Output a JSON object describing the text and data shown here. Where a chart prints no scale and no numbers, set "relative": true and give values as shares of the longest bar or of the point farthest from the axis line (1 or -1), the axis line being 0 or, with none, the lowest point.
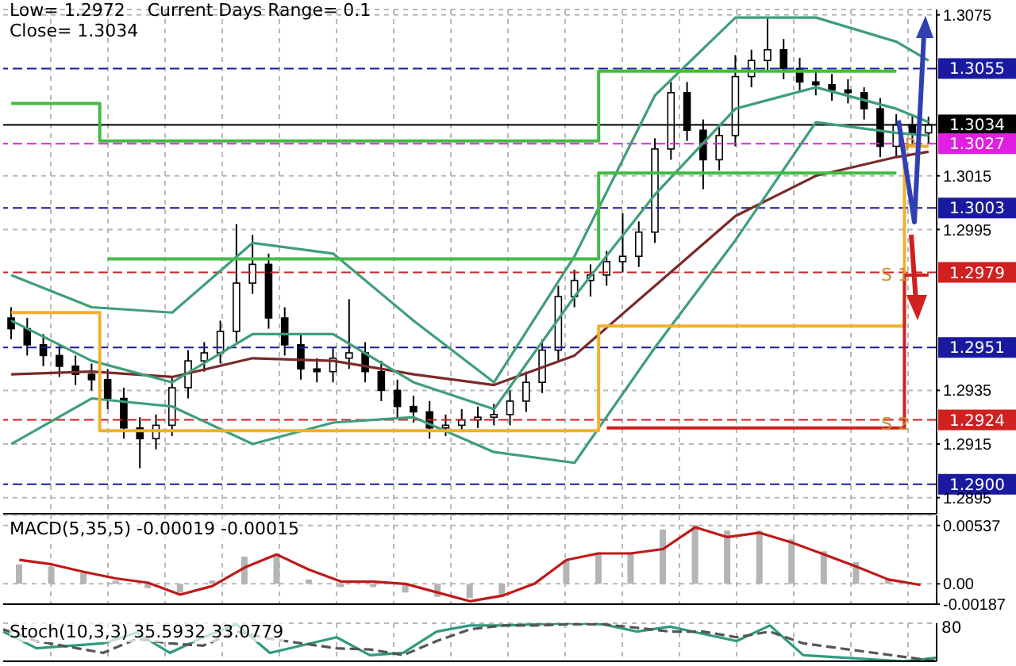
{
  "chart_data": [
    {
      "type": "candlestick",
      "tick_labels": "y",
      "grid": true,
      "annotations": [
        "Low= 1.2972    Current Days Range= 0.1",
        "Close= 1.3034",
        "P",
        "S 1",
        "S 2"
      ],
      "categories": [
        null,
        null,
        null,
        null,
        null,
        null,
        null,
        null,
        null,
        null,
        null,
        null,
        null,
        null,
        null,
        null,
        null,
        null,
        null,
        null,
        null,
        null,
        null,
        null,
        null,
        null,
        null,
        null,
        null,
        null,
        null,
        null,
        null,
        null,
        null,
        null,
        null,
        null,
        null,
        null,
        null,
        null,
        null,
        null,
        null,
        null,
        null,
        null,
        null,
        null,
        null,
        null,
        null,
        null,
        null,
        null,
        null,
        null
      ],
      "ohlc": [
        [
          1.2962,
          1.2966,
          1.2954,
          1.2958
        ],
        [
          1.2958,
          1.2962,
          1.2948,
          1.2952
        ],
        [
          1.2952,
          1.2956,
          1.2944,
          1.2948
        ],
        [
          1.2948,
          1.2952,
          1.294,
          1.2944
        ],
        [
          1.2944,
          1.2948,
          1.2937,
          1.2941
        ],
        [
          1.2941,
          1.2945,
          1.2935,
          1.2939
        ],
        [
          1.2939,
          1.2943,
          1.2928,
          1.2932
        ],
        [
          1.2932,
          1.2936,
          1.2917,
          1.2921
        ],
        [
          1.2921,
          1.2925,
          1.2906,
          1.2917
        ],
        [
          1.2917,
          1.2926,
          1.2913,
          1.2922
        ],
        [
          1.2922,
          1.294,
          1.2918,
          1.2936
        ],
        [
          1.2936,
          1.295,
          1.2932,
          1.2946
        ],
        [
          1.2946,
          1.2953,
          1.2942,
          1.2949
        ],
        [
          1.2949,
          1.2961,
          1.2945,
          1.2957
        ],
        [
          1.2957,
          1.2997,
          1.2953,
          1.2975
        ],
        [
          1.2975,
          1.2993,
          1.2971,
          1.2982
        ],
        [
          1.2982,
          1.2986,
          1.2958,
          1.2962
        ],
        [
          1.2962,
          1.2966,
          1.2948,
          1.2952
        ],
        [
          1.2952,
          1.2956,
          1.2939,
          1.2943
        ],
        [
          1.2943,
          1.2947,
          1.2938,
          1.2942
        ],
        [
          1.2942,
          1.2951,
          1.2938,
          1.2947
        ],
        [
          1.2947,
          1.2969,
          1.2943,
          1.2949
        ],
        [
          1.2949,
          1.2953,
          1.2938,
          1.2942
        ],
        [
          1.2942,
          1.2946,
          1.2931,
          1.2935
        ],
        [
          1.2935,
          1.2939,
          1.2925,
          1.2929
        ],
        [
          1.2929,
          1.2933,
          1.2923,
          1.2927
        ],
        [
          1.2927,
          1.2931,
          1.2917,
          1.2921
        ],
        [
          1.2921,
          1.2926,
          1.2918,
          1.2922
        ],
        [
          1.2922,
          1.2928,
          1.292,
          1.2924
        ],
        [
          1.2924,
          1.2929,
          1.2921,
          1.2925
        ],
        [
          1.2925,
          1.293,
          1.2922,
          1.2926
        ],
        [
          1.2926,
          1.2935,
          1.2922,
          1.2931
        ],
        [
          1.2931,
          1.2942,
          1.2927,
          1.2938
        ],
        [
          1.2938,
          1.2954,
          1.2934,
          1.295
        ],
        [
          1.295,
          1.2974,
          1.2946,
          1.297
        ],
        [
          1.297,
          1.298,
          1.2966,
          1.2976
        ],
        [
          1.2976,
          1.2982,
          1.297,
          1.2978
        ],
        [
          1.2978,
          1.2987,
          1.2974,
          1.2983
        ],
        [
          1.2983,
          1.3001,
          1.2979,
          1.2985
        ],
        [
          1.2985,
          1.2998,
          1.2981,
          1.2994
        ],
        [
          1.2994,
          1.3029,
          1.299,
          1.3025
        ],
        [
          1.3025,
          1.305,
          1.3021,
          1.3046
        ],
        [
          1.3046,
          1.305,
          1.3028,
          1.3032
        ],
        [
          1.3032,
          1.3036,
          1.301,
          1.3021
        ],
        [
          1.3021,
          1.3034,
          1.3017,
          1.303
        ],
        [
          1.303,
          1.306,
          1.3026,
          1.3052
        ],
        [
          1.3052,
          1.3062,
          1.3048,
          1.3058
        ],
        [
          1.3058,
          1.3074,
          1.3054,
          1.3062
        ],
        [
          1.3062,
          1.3066,
          1.3051,
          1.3055
        ],
        [
          1.3055,
          1.3059,
          1.3046,
          1.305
        ],
        [
          1.305,
          1.3054,
          1.3045,
          1.3049
        ],
        [
          1.3049,
          1.3053,
          1.3043,
          1.3047
        ],
        [
          1.3047,
          1.3051,
          1.3042,
          1.3046
        ],
        [
          1.3046,
          1.3048,
          1.3036,
          1.304
        ],
        [
          1.304,
          1.3044,
          1.3022,
          1.3026
        ],
        [
          1.3026,
          1.3038,
          1.3022,
          1.3034
        ],
        [
          1.3034,
          1.3038,
          1.3027,
          1.3031
        ],
        [
          1.3031,
          1.3037,
          1.3027,
          1.3034
        ]
      ],
      "series": [
        {
          "type": "line",
          "color": "#7a2a2a",
          "values": [
            1.2941,
            null,
            null,
            null,
            null,
            1.2942,
            null,
            null,
            null,
            null,
            1.294,
            null,
            null,
            null,
            null,
            1.2947,
            null,
            null,
            null,
            null,
            1.2946,
            null,
            null,
            null,
            null,
            1.2941,
            null,
            null,
            null,
            null,
            1.2937,
            null,
            null,
            null,
            null,
            1.2948,
            null,
            null,
            null,
            null,
            1.2974,
            null,
            null,
            null,
            null,
            1.3,
            null,
            null,
            null,
            null,
            1.3015,
            null,
            null,
            null,
            null,
            1.3022,
            null,
            1.3024
          ]
        },
        {
          "type": "line",
          "color": "#3f9e7a",
          "values": [
            1.2978,
            null,
            null,
            null,
            null,
            1.2966,
            null,
            null,
            null,
            null,
            1.2964,
            null,
            null,
            null,
            null,
            1.299,
            null,
            null,
            null,
            null,
            1.2986,
            null,
            null,
            null,
            null,
            1.2961,
            null,
            null,
            null,
            null,
            1.2938,
            null,
            null,
            null,
            null,
            1.2985,
            null,
            null,
            null,
            null,
            1.3045,
            null,
            null,
            null,
            null,
            1.3074,
            null,
            null,
            null,
            null,
            1.3074,
            null,
            null,
            null,
            null,
            1.3065,
            null,
            1.3058
          ]
        },
        {
          "type": "line",
          "color": "#3f9e7a",
          "values": [
            1.2961,
            null,
            null,
            null,
            null,
            1.2946,
            null,
            null,
            null,
            null,
            1.2938,
            null,
            null,
            null,
            null,
            1.2956,
            null,
            null,
            null,
            null,
            1.2956,
            null,
            null,
            null,
            null,
            1.2938,
            null,
            null,
            null,
            null,
            1.2928,
            null,
            null,
            null,
            null,
            1.297,
            null,
            null,
            null,
            null,
            1.3008,
            null,
            null,
            null,
            null,
            1.304,
            null,
            null,
            null,
            null,
            1.3048,
            null,
            null,
            null,
            null,
            1.304,
            null,
            1.3035
          ]
        },
        {
          "type": "line",
          "color": "#3f9e7a",
          "values": [
            1.2915,
            null,
            null,
            null,
            null,
            1.2932,
            null,
            null,
            null,
            null,
            1.2929,
            null,
            null,
            null,
            null,
            1.2915,
            null,
            null,
            null,
            null,
            1.2923,
            null,
            null,
            null,
            null,
            1.2925,
            null,
            null,
            null,
            null,
            1.2912,
            null,
            null,
            null,
            null,
            1.2908,
            null,
            null,
            null,
            null,
            1.2951,
            null,
            null,
            null,
            null,
            1.2991,
            null,
            null,
            null,
            null,
            1.3035,
            null,
            null,
            null,
            null,
            1.3031,
            null,
            1.303
          ]
        },
        {
          "type": "step",
          "color": "#44bb44",
          "values": [
            1.3042,
            1.3042,
            1.3042,
            1.3042,
            1.3042,
            1.3042,
            1.3028,
            1.3028,
            1.3028,
            1.3028,
            1.3028,
            1.3028,
            1.3028,
            1.3028,
            1.3028,
            1.3028,
            1.3028,
            1.3028,
            1.3028,
            1.3028,
            1.3028,
            1.3028,
            1.3028,
            1.3028,
            1.3028,
            1.3028,
            1.3028,
            1.3028,
            1.3028,
            1.3028,
            1.3028,
            1.3028,
            1.3028,
            1.3028,
            1.3028,
            1.3028,
            1.3028,
            1.3054,
            1.3054,
            1.3054,
            1.3054,
            1.3054,
            1.3054,
            1.3054,
            1.3054,
            1.3054,
            1.3054,
            1.3054,
            1.3054,
            1.3054,
            1.3054,
            1.3054,
            1.3054,
            1.3054,
            1.3054,
            1.3054,
            null,
            null
          ]
        },
        {
          "type": "step",
          "color": "#44bb44",
          "values": [
            null,
            null,
            null,
            null,
            null,
            null,
            1.2984,
            1.2984,
            1.2984,
            1.2984,
            1.2984,
            1.2984,
            1.2984,
            1.2984,
            1.2984,
            1.2984,
            1.2984,
            1.2984,
            1.2984,
            1.2984,
            1.2984,
            1.2984,
            1.2984,
            1.2984,
            1.2984,
            1.2984,
            1.2984,
            1.2984,
            1.2984,
            1.2984,
            1.2984,
            1.2984,
            1.2984,
            1.2984,
            1.2984,
            1.2984,
            1.2984,
            1.3016,
            1.3016,
            1.3016,
            1.3016,
            1.3016,
            1.3016,
            1.3016,
            1.3016,
            1.3016,
            1.3016,
            1.3016,
            1.3016,
            1.3016,
            1.3016,
            1.3016,
            1.3016,
            1.3016,
            1.3016,
            1.3016,
            null,
            null
          ]
        },
        {
          "type": "step",
          "color": "#f0b030",
          "values": [
            1.2964,
            1.2964,
            1.2964,
            1.2964,
            1.2964,
            1.2964,
            1.292,
            1.292,
            1.292,
            1.292,
            1.292,
            1.292,
            1.292,
            1.292,
            1.292,
            1.292,
            1.292,
            1.292,
            1.292,
            1.292,
            1.292,
            1.292,
            1.292,
            1.292,
            1.292,
            1.292,
            1.292,
            1.292,
            1.292,
            1.292,
            1.292,
            1.292,
            1.292,
            1.292,
            1.292,
            1.292,
            1.292,
            1.2959,
            1.2959,
            1.2959,
            1.2959,
            1.2959,
            1.2959,
            1.2959,
            1.2959,
            1.2959,
            1.2959,
            1.2959,
            1.2959,
            1.2959,
            1.2959,
            1.2959,
            1.2959,
            1.2959,
            1.2959,
            1.2959,
            1.3026,
            1.3026
          ]
        },
        {
          "type": "step",
          "color": "#cc2222",
          "values": [
            null,
            null,
            null,
            null,
            null,
            null,
            null,
            null,
            null,
            null,
            null,
            null,
            null,
            null,
            null,
            null,
            null,
            null,
            null,
            null,
            null,
            null,
            null,
            null,
            null,
            null,
            null,
            null,
            null,
            null,
            null,
            null,
            null,
            null,
            null,
            null,
            null,
            1.2921,
            1.2921,
            1.2921,
            1.2921,
            1.2921,
            1.2921,
            1.2921,
            1.2921,
            1.2921,
            1.2921,
            1.2921,
            1.2921,
            1.2921,
            1.2921,
            1.2921,
            1.2921,
            1.2921,
            1.2921,
            1.2921,
            1.2978,
            1.2978
          ]
        }
      ],
      "ylim": [
        1.2889,
        1.3077
      ],
      "yticks": [
        1.3075,
        1.3015,
        1.2995,
        1.2935,
        1.2915,
        1.2895
      ],
      "ref_lines": [
        {
          "axis": "y",
          "value": 1.3055,
          "label": "1.3055",
          "color": "#1a1aa0",
          "line_style": "dashed"
        },
        {
          "axis": "y",
          "value": 1.3034,
          "label": "1.3034",
          "color": "#000000",
          "line_style": "solid"
        },
        {
          "axis": "y",
          "value": 1.3027,
          "label": "1.3027",
          "color": "#e020e0",
          "line_style": "dashed"
        },
        {
          "axis": "y",
          "value": 1.3003,
          "label": "1.3003",
          "color": "#1a1aa0",
          "line_style": "dashed"
        },
        {
          "axis": "y",
          "value": 1.2979,
          "label": "1.2979",
          "color": "#d02020",
          "line_style": "dashed"
        },
        {
          "axis": "y",
          "value": 1.2951,
          "label": "1.2951",
          "color": "#1a1aa0",
          "line_style": "dashed"
        },
        {
          "axis": "y",
          "value": 1.2924,
          "label": "1.2924",
          "color": "#d02020",
          "line_style": "dashed"
        },
        {
          "axis": "y",
          "value": 1.29,
          "label": "1.2900",
          "color": "#1a1aa0",
          "line_style": "dashed"
        }
      ]
    },
    {
      "type": "bar",
      "title": "MACD(5,35,5) -0.00019 -0.00015",
      "tick_labels": "y",
      "grid": true,
      "categories": [
        null,
        null,
        null,
        null,
        null,
        null,
        null,
        null,
        null,
        null,
        null,
        null,
        null,
        null,
        null,
        null,
        null,
        null,
        null,
        null,
        null,
        null,
        null,
        null,
        null,
        null,
        null,
        null,
        null
      ],
      "series": [
        {
          "type": "bar",
          "color": "#b4b4b4",
          "values": [
            0.0018,
            0.0016,
            0.001,
            0.0003,
            -0.0004,
            -0.0008,
            0.0003,
            0.0025,
            0.0027,
            0.0004,
            -0.0003,
            -0.0003,
            -0.0008,
            -0.0012,
            -0.0013,
            -0.001,
            null,
            0.0022,
            0.0029,
            0.0029,
            0.005,
            0.0054,
            0.0049,
            0.0049,
            0.0041,
            0.003,
            0.002,
            0.0004,
            null
          ]
        },
        {
          "type": "line",
          "color": "#c01818",
          "values": [
            0.0022,
            0.0018,
            0.0011,
            0.0005,
            0.0001,
            -0.001,
            -0.0002,
            0.0015,
            0.0027,
            0.0013,
            0.0002,
            0.0002,
            0,
            -0.0008,
            -0.0016,
            -0.0011,
            0,
            0.0022,
            0.0028,
            0.0028,
            0.0032,
            0.0052,
            0.0043,
            0.0047,
            0.0038,
            0.0027,
            0.0016,
            0.0004,
            -0.0001
          ]
        }
      ],
      "ylim": [
        -0.00187,
        0.0063
      ],
      "yticks": [
        0.00537,
        {
          "value": 0,
          "label": "0.00"
        },
        -0.00187
      ]
    },
    {
      "type": "line",
      "title": "Stoch(10,3,3) 35.5932 33.0779",
      "relative": true,
      "tick_labels": false,
      "grid": true,
      "annotations": [
        "80"
      ],
      "categories": [
        null,
        null,
        null,
        null,
        null,
        null,
        null,
        null,
        null,
        null,
        null,
        null,
        null,
        null,
        null,
        null,
        null,
        null,
        null,
        null,
        null,
        null,
        null,
        null,
        null,
        null,
        null,
        null,
        null
      ],
      "series": [
        {
          "color": "#2e9a7e",
          "line_style": "solid",
          "values": [
            0.78,
            0.34,
            null,
            0.47,
            0.75,
            0.22,
            0.63,
            0.97,
            0.22,
            null,
            0.63,
            0.16,
            0.22,
            0.78,
            0.94,
            0.94,
            0.97,
            1,
            0.97,
            0.78,
            0.91,
            0.72,
            0.53,
            0.94,
            0.16,
            null,
            null,
            0,
            0.09
          ]
        },
        {
          "color": "#555555",
          "line_style": "dashed",
          "values": [
            0.84,
            0.53,
            null,
            0.22,
            0.59,
            0.47,
            0.41,
            0.78,
            0.59,
            null,
            0.34,
            0.31,
            0.16,
            0.53,
            0.84,
            0.94,
            0.94,
            0.97,
            0.97,
            0.88,
            0.78,
            0.78,
            0.63,
            0.78,
            0.47,
            null,
            null,
            null,
            0
          ]
        }
      ]
    }
  ]
}
